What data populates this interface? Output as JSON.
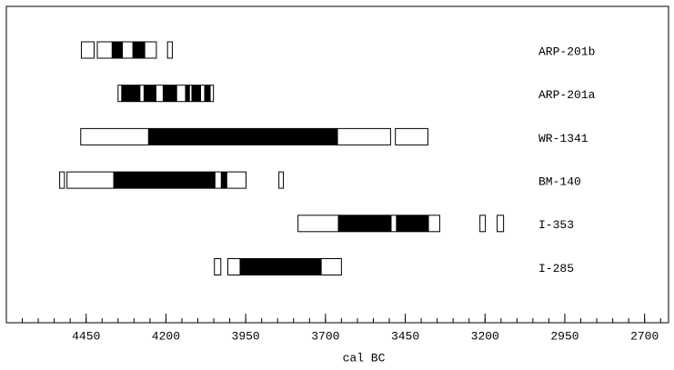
{
  "chart_data": {
    "type": "range",
    "xlabel": "cal BC",
    "xlim": [
      4700,
      2625
    ],
    "xticks": [
      4450,
      4200,
      3950,
      3700,
      3450,
      3200,
      2950,
      2700
    ],
    "xminorticks": [
      4650,
      4600,
      4550,
      4500,
      4450,
      4400,
      4350,
      4300,
      4250,
      4200,
      4150,
      4100,
      4050,
      4000,
      3950,
      3900,
      3850,
      3800,
      3750,
      3700,
      3650,
      3600,
      3550,
      3500,
      3450,
      3400,
      3350,
      3300,
      3250,
      3200,
      3150,
      3100,
      3050,
      3000,
      2950,
      2900,
      2850,
      2800,
      2750,
      2700,
      2650
    ],
    "outer_color": "#ffffff",
    "inner_color": "#000000",
    "series": [
      {
        "name": "ARP-201b",
        "outer": [
          [
            4465,
            4425
          ],
          [
            4415,
            4230
          ],
          [
            4195,
            4180
          ]
        ],
        "inner": [
          [
            4370,
            4335
          ],
          [
            4305,
            4265
          ]
        ]
      },
      {
        "name": "ARP-201a",
        "outer": [
          [
            4350,
            4051
          ]
        ],
        "inner": [
          [
            4340,
            4280
          ],
          [
            4270,
            4230
          ],
          [
            4210,
            4165
          ],
          [
            4140,
            4125
          ],
          [
            4120,
            4090
          ],
          [
            4080,
            4060
          ]
        ]
      },
      {
        "name": "WR-1341",
        "outer": [
          [
            4467,
            3496
          ],
          [
            3481,
            3379
          ]
        ],
        "inner": [
          [
            4256,
            3661
          ]
        ]
      },
      {
        "name": "BM-140",
        "outer": [
          [
            4533,
            4518
          ],
          [
            4510,
            3949
          ],
          [
            3846,
            3832
          ]
        ],
        "inner": [
          [
            4365,
            4045
          ],
          [
            4028,
            4008
          ]
        ]
      },
      {
        "name": "I-353",
        "outer": [
          [
            3786,
            3342
          ],
          [
            3216,
            3199
          ],
          [
            3162,
            3142
          ]
        ],
        "inner": [
          [
            3661,
            3493
          ],
          [
            3479,
            3376
          ]
        ]
      },
      {
        "name": "I-285",
        "outer": [
          [
            4048,
            4028
          ],
          [
            4006,
            3650
          ]
        ],
        "inner": [
          [
            3969,
            3712
          ]
        ]
      }
    ]
  }
}
